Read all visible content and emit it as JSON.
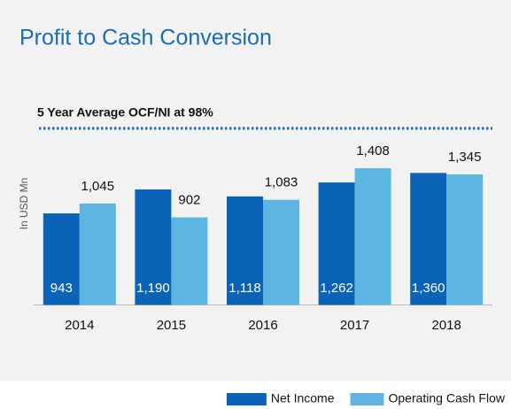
{
  "chart_data": {
    "type": "bar",
    "title": "Profit to Cash Conversion",
    "annotation": "5 Year Average OCF/NI at 98%",
    "y_label": "In USD Mn",
    "categories": [
      "2014",
      "2015",
      "2016",
      "2017",
      "2018"
    ],
    "series": [
      {
        "name": "Net Income",
        "color": "#0b63b8",
        "values": [
          943,
          1190,
          1118,
          1262,
          1360
        ],
        "value_labels": [
          "943",
          "1,190",
          "1,118",
          "1,262",
          "1,360"
        ]
      },
      {
        "name": "Operating Cash Flow",
        "color": "#5db6e1",
        "values": [
          1045,
          902,
          1083,
          1408,
          1345
        ],
        "value_labels": [
          "1,045",
          "902",
          "1,083",
          "1,408",
          "1,345"
        ]
      }
    ],
    "ylim": [
      0,
      1600
    ],
    "legend": "bottom-right"
  }
}
